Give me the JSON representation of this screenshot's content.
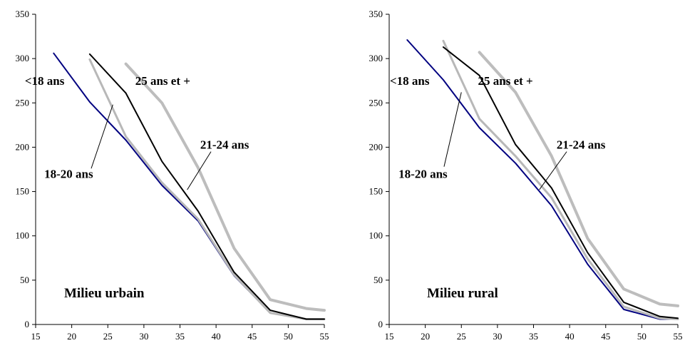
{
  "chart_data": [
    {
      "type": "line",
      "panel_label": "Milieu urbain",
      "xlim": [
        15,
        55
      ],
      "ylim": [
        0,
        350
      ],
      "xticks": [
        "15",
        "20",
        "25",
        "30",
        "35",
        "40",
        "45",
        "50",
        "55"
      ],
      "yticks": [
        "0",
        "50",
        "100",
        "150",
        "200",
        "250",
        "300",
        "350"
      ],
      "grid": false,
      "series": [
        {
          "name": "<18 ans",
          "color": "#000080",
          "width": 2,
          "points": [
            [
              17.5,
              306
            ],
            [
              22.5,
              251
            ],
            [
              27.5,
              208
            ],
            [
              32.5,
              157
            ],
            [
              37.5,
              117
            ],
            [
              42.5,
              55
            ],
            [
              47.5,
              13
            ],
            [
              52.5,
              6
            ],
            [
              55,
              6
            ]
          ]
        },
        {
          "name": "18-20 ans",
          "color": "#b8b8b8",
          "width": 3,
          "points": [
            [
              22.5,
              299
            ],
            [
              27.5,
              212
            ],
            [
              32.5,
              160
            ],
            [
              37.5,
              119
            ],
            [
              42.5,
              56
            ],
            [
              47.5,
              13
            ],
            [
              52.5,
              6
            ],
            [
              55,
              6
            ]
          ]
        },
        {
          "name": "21-24 ans",
          "color": "#000000",
          "width": 2,
          "points": [
            [
              22.5,
              305
            ],
            [
              27.5,
              261
            ],
            [
              32.5,
              184
            ],
            [
              37.5,
              128
            ],
            [
              42.5,
              59
            ],
            [
              47.5,
              16
            ],
            [
              52.5,
              6
            ],
            [
              55,
              6
            ]
          ]
        },
        {
          "name": "25 ans et +",
          "color": "#bdbdbd",
          "width": 4,
          "points": [
            [
              27.5,
              294
            ],
            [
              32.5,
              250
            ],
            [
              37.5,
              177
            ],
            [
              42.5,
              86
            ],
            [
              47.5,
              28
            ],
            [
              52.5,
              18
            ],
            [
              55,
              16
            ]
          ]
        }
      ],
      "annotations": [
        {
          "text": "<18 ans",
          "x": 13.5,
          "y": 275,
          "anchor": "start"
        },
        {
          "text": "25 ans et +",
          "x": 28.8,
          "y": 275,
          "anchor": "start"
        },
        {
          "text": "21-24 ans",
          "x": 37.8,
          "y": 203,
          "anchor": "start"
        },
        {
          "text": "18-20 ans",
          "x": 16.2,
          "y": 170,
          "anchor": "start"
        }
      ],
      "leaders": [
        {
          "from": [
            22.7,
            176
          ],
          "to": [
            25.7,
            248
          ]
        },
        {
          "from": [
            36.0,
            152
          ],
          "to": [
            39.3,
            195
          ]
        }
      ]
    },
    {
      "type": "line",
      "panel_label": "Milieu rural",
      "xlim": [
        15,
        55
      ],
      "ylim": [
        0,
        350
      ],
      "xticks": [
        "15",
        "20",
        "25",
        "30",
        "35",
        "40",
        "45",
        "50",
        "55"
      ],
      "yticks": [
        "0",
        "50",
        "100",
        "150",
        "200",
        "250",
        "300",
        "350"
      ],
      "grid": false,
      "series": [
        {
          "name": "<18 ans",
          "color": "#000080",
          "width": 2,
          "points": [
            [
              17.5,
              321
            ],
            [
              22.5,
              276
            ],
            [
              27.5,
              222
            ],
            [
              32.5,
              182
            ],
            [
              37.5,
              134
            ],
            [
              42.5,
              68
            ],
            [
              47.5,
              17
            ],
            [
              52.5,
              6
            ],
            [
              55,
              6
            ]
          ]
        },
        {
          "name": "18-20 ans",
          "color": "#b8b8b8",
          "width": 3,
          "points": [
            [
              22.5,
              320
            ],
            [
              27.5,
              232
            ],
            [
              32.5,
              190
            ],
            [
              37.5,
              143
            ],
            [
              42.5,
              74
            ],
            [
              47.5,
              20
            ],
            [
              52.5,
              7
            ],
            [
              55,
              6
            ]
          ]
        },
        {
          "name": "21-24 ans",
          "color": "#000000",
          "width": 2,
          "points": [
            [
              22.5,
              313
            ],
            [
              27.5,
              281
            ],
            [
              32.5,
              203
            ],
            [
              37.5,
              154
            ],
            [
              42.5,
              81
            ],
            [
              47.5,
              25
            ],
            [
              52.5,
              9
            ],
            [
              55,
              7
            ]
          ]
        },
        {
          "name": "25 ans et +",
          "color": "#bdbdbd",
          "width": 4,
          "points": [
            [
              27.5,
              307
            ],
            [
              32.5,
              262
            ],
            [
              37.5,
              190
            ],
            [
              42.5,
              97
            ],
            [
              47.5,
              40
            ],
            [
              52.5,
              23
            ],
            [
              55,
              21
            ]
          ]
        }
      ],
      "annotations": [
        {
          "text": "<18 ans",
          "x": 15.1,
          "y": 275,
          "anchor": "start"
        },
        {
          "text": "25 ans et +",
          "x": 27.3,
          "y": 275,
          "anchor": "start"
        },
        {
          "text": "21-24 ans",
          "x": 38.2,
          "y": 203,
          "anchor": "start"
        },
        {
          "text": "18-20 ans",
          "x": 16.3,
          "y": 170,
          "anchor": "start"
        }
      ],
      "leaders": [
        {
          "from": [
            22.6,
            178
          ],
          "to": [
            25.0,
            262
          ]
        },
        {
          "from": [
            35.8,
            152
          ],
          "to": [
            39.6,
            195
          ]
        }
      ]
    }
  ]
}
